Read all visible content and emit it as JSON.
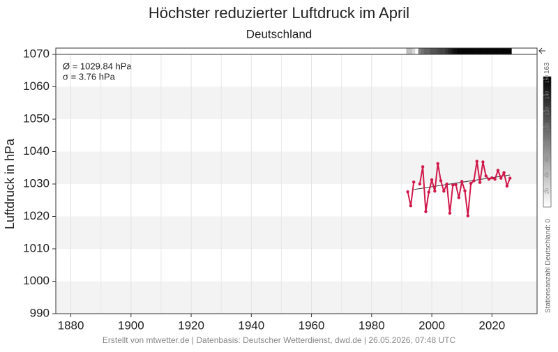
{
  "chart_data": {
    "type": "line",
    "title": "Höchster reduzierter Luftdruck im April",
    "subtitle": "Deutschland",
    "ylabel": "Luftdruck in hPa",
    "annotations": [
      "Ø = 1029.84 hPa",
      "σ = 3.76 hPa"
    ],
    "footer": "Erstellt von mtwetter.de | Datenbasis: Deutscher Wetterdienst, dwd.de | 26.05.2026, 07:48 UTC",
    "xlim": [
      1875,
      2035
    ],
    "xticks": [
      1880,
      1900,
      1920,
      1940,
      1960,
      1980,
      2000,
      2020
    ],
    "ylim": [
      990,
      1070
    ],
    "yticks": [
      990,
      1000,
      1010,
      1020,
      1030,
      1040,
      1050,
      1060,
      1070
    ],
    "grid": true,
    "series": [
      {
        "color": "#d0184a",
        "x": [
          1992,
          1993,
          1994,
          1995,
          1996,
          1997,
          1998,
          1999,
          2000,
          2001,
          2002,
          2003,
          2004,
          2005,
          2006,
          2007,
          2008,
          2009,
          2010,
          2011,
          2012,
          2013,
          2014,
          2015,
          2016,
          2017,
          2018,
          2019,
          2020,
          2021,
          2022,
          2023,
          2024,
          2025,
          2026
        ],
        "values": [
          1027.6,
          1023.3,
          1030.6,
          null,
          1030,
          1035.3,
          1021.5,
          1027.5,
          1031.3,
          1027.8,
          1036.3,
          1031,
          1027.8,
          1030,
          1021,
          1029.7,
          1029.8,
          1025.8,
          1030.8,
          1027.9,
          1020.2,
          1030.2,
          1031,
          1037,
          1030.5,
          1036.8,
          1032.5,
          1031.5,
          1031.9,
          1031.5,
          1034.2,
          1031.8,
          1033.5,
          1029.4,
          1031.8
        ]
      }
    ],
    "trend": {
      "color": "#333333",
      "x": [
        1994,
        2026
      ],
      "values": [
        1028.3,
        1032.8
      ]
    },
    "station_counts": {
      "x": [
        1992,
        1993,
        1994,
        1995,
        1996,
        1997,
        1998,
        1999,
        2000,
        2001,
        2002,
        2003,
        2004,
        2005,
        2006,
        2007,
        2008,
        2009,
        2010,
        2011,
        2012,
        2013,
        2014,
        2015,
        2016,
        2017,
        2018,
        2019,
        2020,
        2021,
        2022,
        2023,
        2024,
        2025,
        2026
      ],
      "values": [
        40,
        40,
        25,
        0,
        80,
        90,
        100,
        100,
        110,
        110,
        115,
        120,
        120,
        130,
        140,
        150,
        155,
        160,
        160,
        160,
        160,
        160,
        160,
        160,
        160,
        160,
        160,
        160,
        160,
        160,
        160,
        160,
        160,
        160,
        160
      ]
    },
    "clim": [
      0,
      163
    ],
    "cticks": [
      20,
      40,
      60,
      80,
      100,
      120,
      140,
      160
    ],
    "colorbar_label": "Stationsanzahl Deutschland: 0"
  }
}
